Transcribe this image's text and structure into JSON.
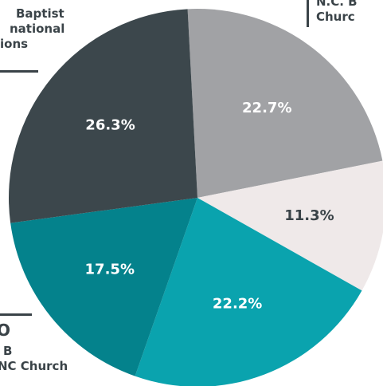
{
  "chart_data": {
    "type": "pie",
    "start_angle_deg": -3,
    "values": [
      22.7,
      11.3,
      22.2,
      17.5,
      26.3
    ],
    "labels": [
      "22.7%",
      "11.3%",
      "22.2%",
      "17.5%",
      "26.3%"
    ],
    "colors": [
      "#a1a2a5",
      "#efe9e9",
      "#0aa3ae",
      "#04828c",
      "#3c474c"
    ],
    "label_colors": [
      "#ffffff",
      "#3a4348",
      "#ffffff",
      "#ffffff",
      "#ffffff"
    ]
  },
  "callouts": {
    "top_left": [
      "Baptist",
      "national",
      "ions"
    ],
    "top_right": [
      "N.C. B",
      "Churc"
    ],
    "bottom_left": [
      "O",
      "B",
      "NC Church"
    ]
  }
}
